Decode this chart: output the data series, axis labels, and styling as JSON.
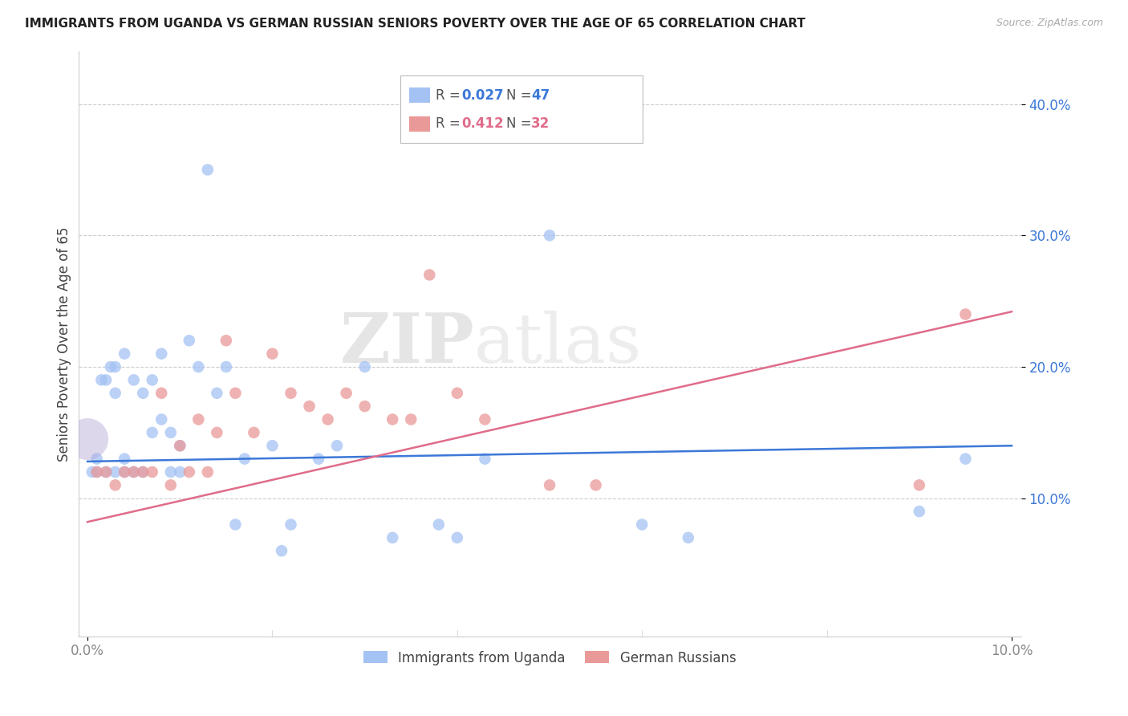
{
  "title": "IMMIGRANTS FROM UGANDA VS GERMAN RUSSIAN SENIORS POVERTY OVER THE AGE OF 65 CORRELATION CHART",
  "source": "Source: ZipAtlas.com",
  "ylabel": "Seniors Poverty Over the Age of 65",
  "xmin": 0.0,
  "xmax": 0.1,
  "ymin": 0.0,
  "ymax": 0.44,
  "yticks": [
    0.1,
    0.2,
    0.3,
    0.4
  ],
  "ytick_labels": [
    "10.0%",
    "20.0%",
    "30.0%",
    "40.0%"
  ],
  "xticks": [
    0.0,
    0.1
  ],
  "xtick_labels": [
    "0.0%",
    "10.0%"
  ],
  "legend_label1": "Immigrants from Uganda",
  "legend_label2": "German Russians",
  "blue_scatter_color": "#a4c2f4",
  "pink_scatter_color": "#ea9999",
  "blue_line_color": "#3c78d8",
  "pink_line_color": "#e06c8a",
  "purple_bubble_color": "#b4a7d6",
  "watermark": "ZIPatlas",
  "R_uganda": 0.027,
  "N_uganda": 47,
  "R_german": 0.412,
  "N_german": 32,
  "blue_line_y0": 0.128,
  "blue_line_y1": 0.14,
  "pink_line_y0": 0.082,
  "pink_line_y1": 0.242,
  "uganda_x": [
    0.0005,
    0.001,
    0.001,
    0.0015,
    0.002,
    0.002,
    0.0025,
    0.003,
    0.003,
    0.003,
    0.004,
    0.004,
    0.004,
    0.005,
    0.005,
    0.006,
    0.006,
    0.007,
    0.007,
    0.008,
    0.008,
    0.009,
    0.009,
    0.01,
    0.01,
    0.011,
    0.012,
    0.013,
    0.014,
    0.015,
    0.016,
    0.017,
    0.02,
    0.021,
    0.022,
    0.025,
    0.027,
    0.03,
    0.033,
    0.038,
    0.04,
    0.043,
    0.05,
    0.06,
    0.065,
    0.09,
    0.095
  ],
  "uganda_y": [
    0.12,
    0.12,
    0.13,
    0.19,
    0.12,
    0.19,
    0.2,
    0.12,
    0.18,
    0.2,
    0.12,
    0.13,
    0.21,
    0.12,
    0.19,
    0.18,
    0.12,
    0.15,
    0.19,
    0.21,
    0.16,
    0.15,
    0.12,
    0.14,
    0.12,
    0.22,
    0.2,
    0.35,
    0.18,
    0.2,
    0.08,
    0.13,
    0.14,
    0.06,
    0.08,
    0.13,
    0.14,
    0.2,
    0.07,
    0.08,
    0.07,
    0.13,
    0.3,
    0.08,
    0.07,
    0.09,
    0.13
  ],
  "german_x": [
    0.001,
    0.002,
    0.003,
    0.004,
    0.005,
    0.006,
    0.007,
    0.008,
    0.009,
    0.01,
    0.011,
    0.012,
    0.013,
    0.014,
    0.015,
    0.016,
    0.018,
    0.02,
    0.022,
    0.024,
    0.026,
    0.028,
    0.03,
    0.033,
    0.035,
    0.037,
    0.04,
    0.043,
    0.05,
    0.055,
    0.09,
    0.095
  ],
  "german_y": [
    0.12,
    0.12,
    0.11,
    0.12,
    0.12,
    0.12,
    0.12,
    0.18,
    0.11,
    0.14,
    0.12,
    0.16,
    0.12,
    0.15,
    0.22,
    0.18,
    0.15,
    0.21,
    0.18,
    0.17,
    0.16,
    0.18,
    0.17,
    0.16,
    0.16,
    0.27,
    0.18,
    0.16,
    0.11,
    0.11,
    0.11,
    0.24
  ]
}
